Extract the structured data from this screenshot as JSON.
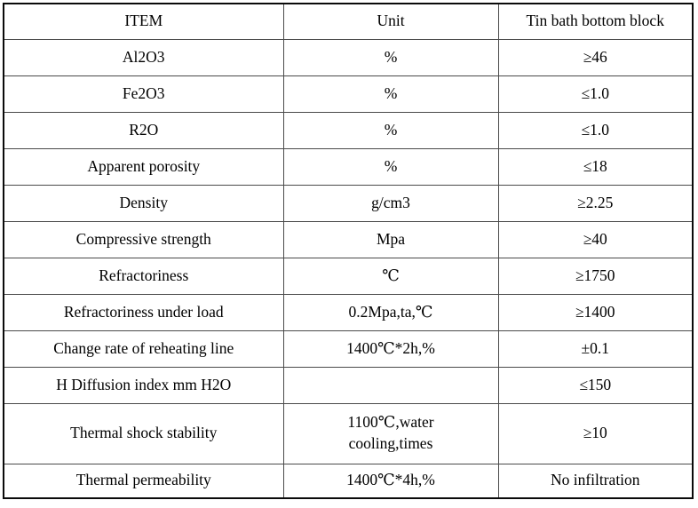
{
  "table": {
    "header": {
      "item": "ITEM",
      "unit": "Unit",
      "value": "Tin bath bottom block"
    },
    "rows": [
      {
        "item": "Al2O3",
        "unit": "%",
        "value": "≥46"
      },
      {
        "item": "Fe2O3",
        "unit": "%",
        "value": "≤1.0"
      },
      {
        "item": "R2O",
        "unit": "%",
        "value": "≤1.0"
      },
      {
        "item": "Apparent porosity",
        "unit": "%",
        "value": "≤18"
      },
      {
        "item": "Density",
        "unit": "g/cm3",
        "value": "≥2.25"
      },
      {
        "item": "Compressive strength",
        "unit": "Mpa",
        "value": "≥40"
      },
      {
        "item": "Refractoriness",
        "unit": "℃",
        "value": "≥1750"
      },
      {
        "item": "Refractoriness under load",
        "unit": "0.2Mpa,ta,℃",
        "value": "≥1400"
      },
      {
        "item": "Change rate of reheating line",
        "unit": "1400℃*2h,%",
        "value": "±0.1"
      },
      {
        "item": "H Diffusion index mm H2O",
        "unit": "",
        "value": "≤150"
      },
      {
        "item": "Thermal shock stability",
        "unit": "1100℃,water\ncooling,times",
        "value": "≥10"
      },
      {
        "item": "Thermal permeability",
        "unit": "1400℃*4h,%",
        "value": "No infiltration"
      }
    ]
  }
}
